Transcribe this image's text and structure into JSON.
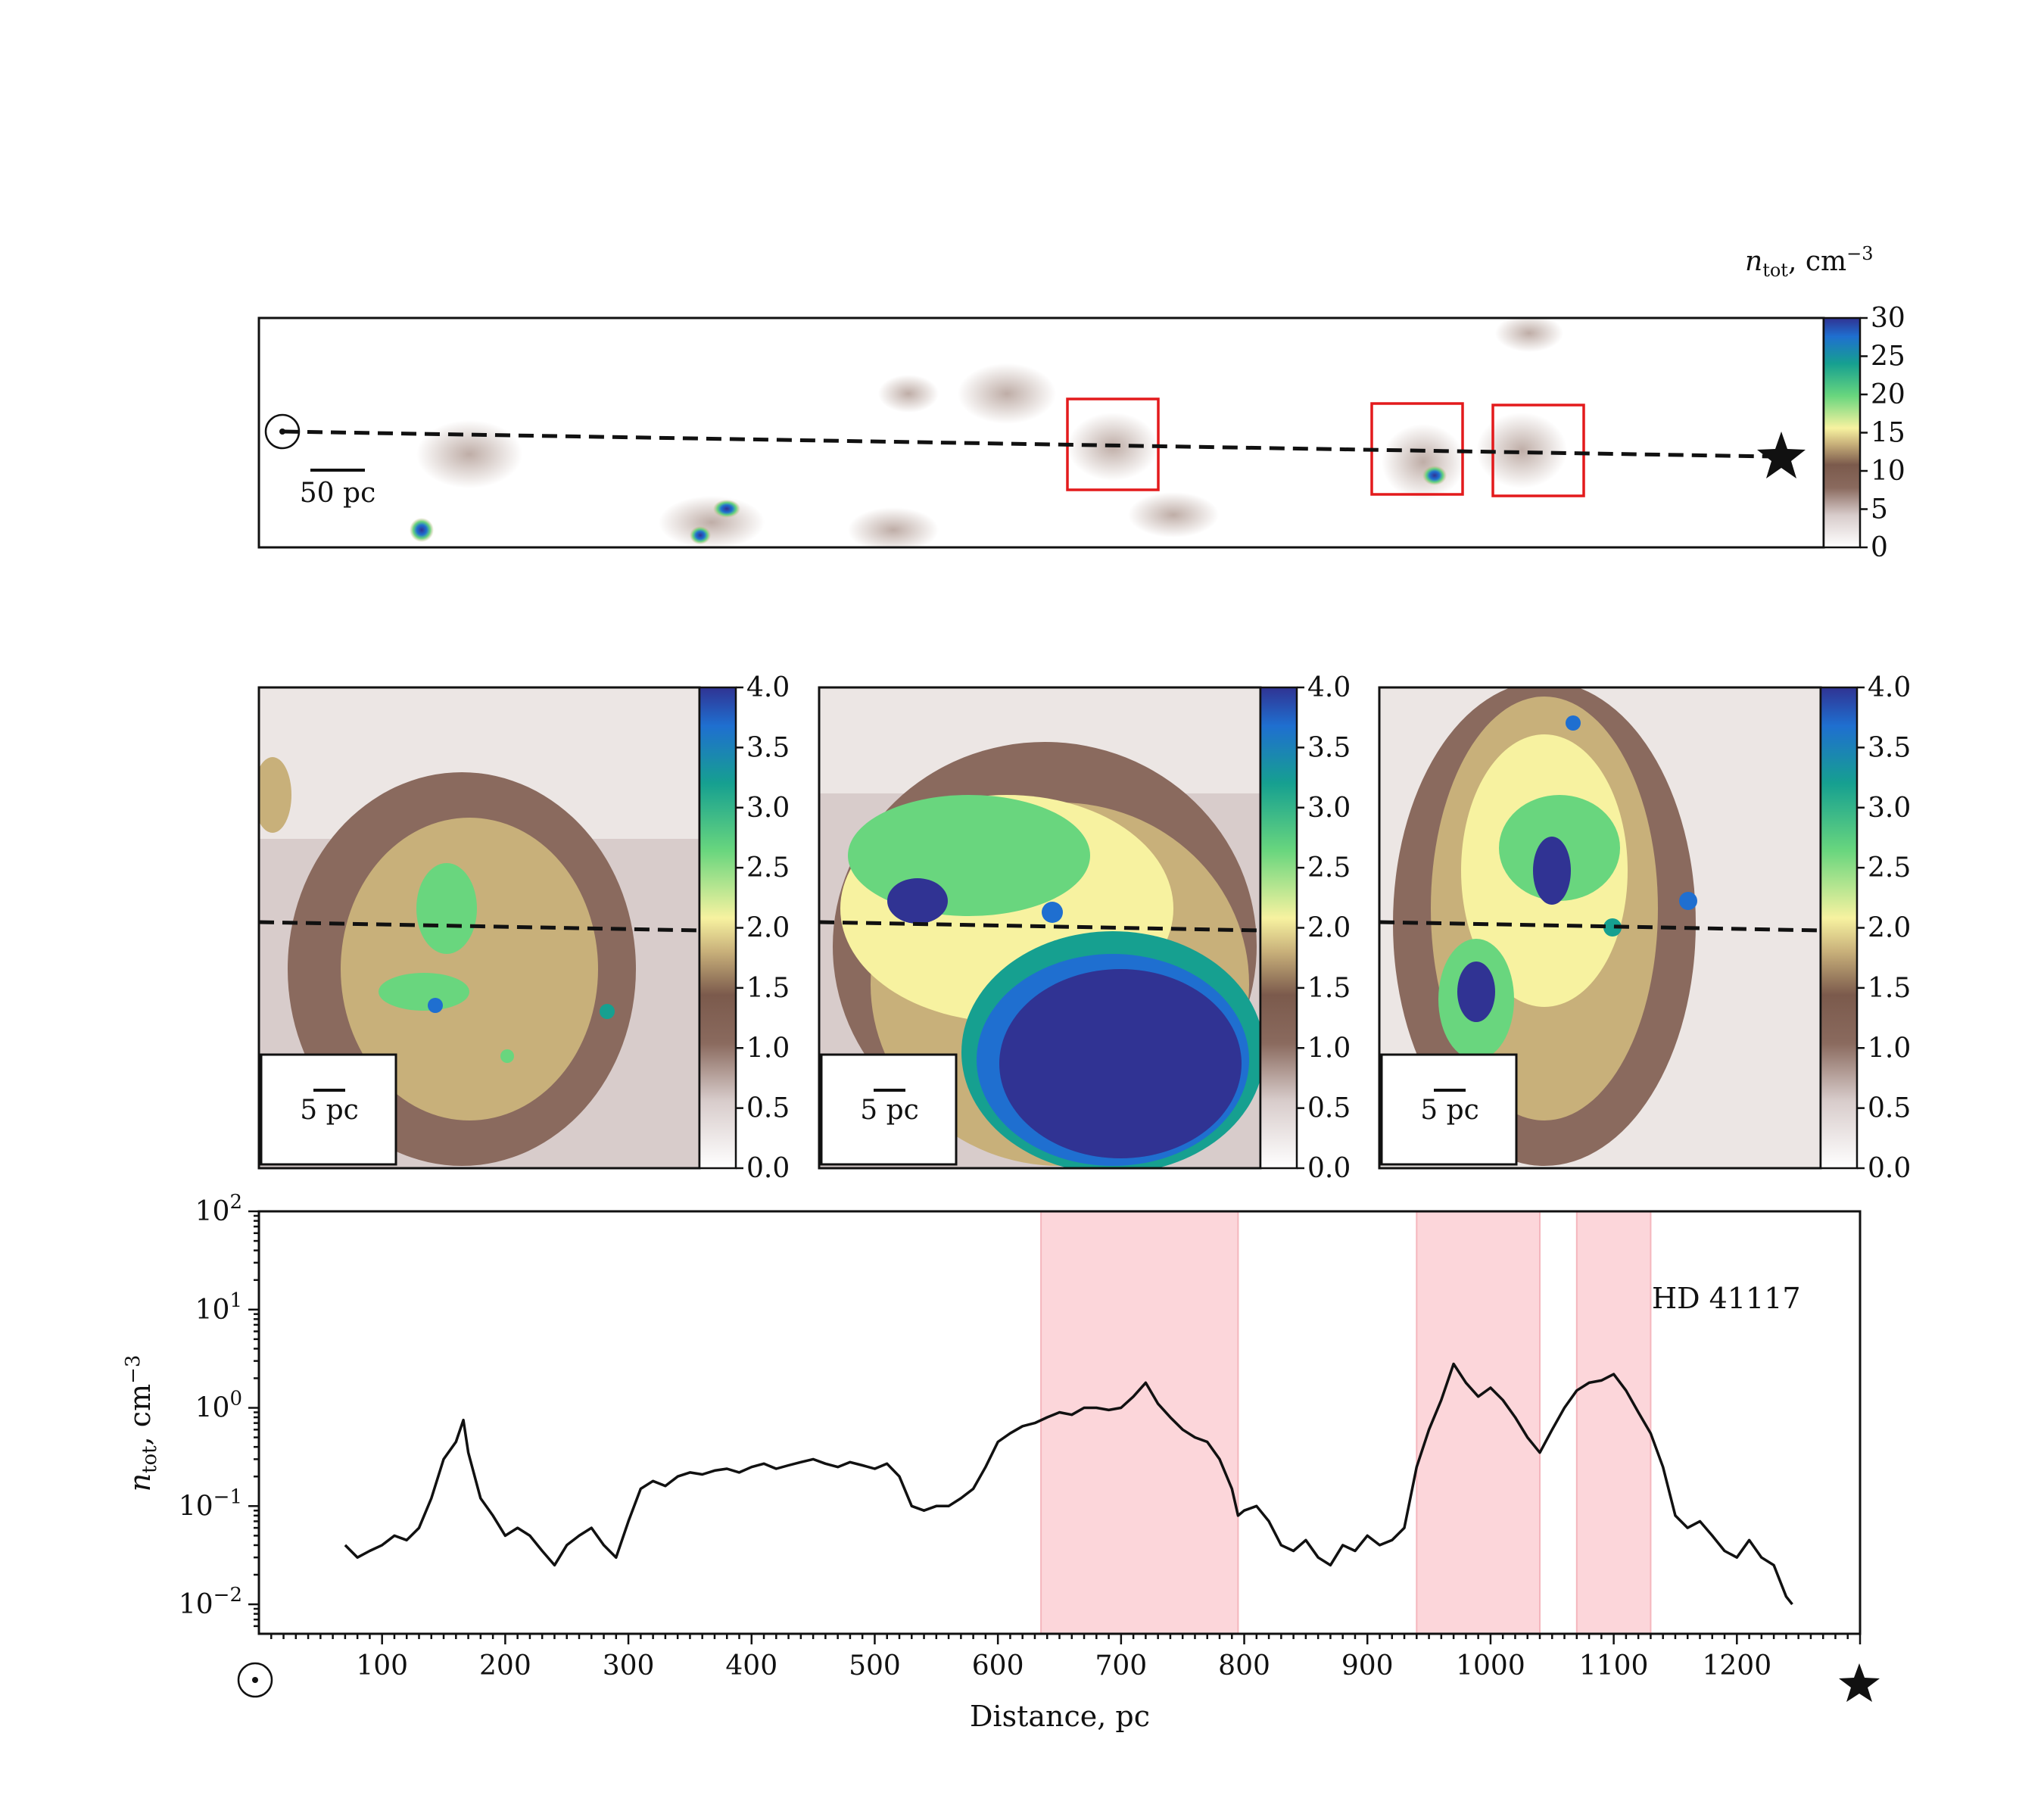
{
  "colorbar": {
    "label_n": "n",
    "label_sub": "tot",
    "label_unit": ", cm",
    "label_exp": "−3"
  },
  "overview": {
    "scalebar_label": "50 pc",
    "colorbar_ticks": [
      "0",
      "5",
      "10",
      "15",
      "20",
      "25",
      "30"
    ],
    "colorbar_range": [
      0,
      30
    ],
    "box_color": "#e31a1c"
  },
  "zoom_panels": [
    {
      "scalebar_label": "5 pc",
      "colorbar_ticks": [
        "0.0",
        "0.5",
        "1.0",
        "1.5",
        "2.0",
        "2.5",
        "3.0",
        "3.5",
        "4.0"
      ]
    },
    {
      "scalebar_label": "5 pc",
      "colorbar_ticks": [
        "0.0",
        "0.5",
        "1.0",
        "1.5",
        "2.0",
        "2.5",
        "3.0",
        "3.5",
        "4.0"
      ]
    },
    {
      "scalebar_label": "5 pc",
      "colorbar_ticks": [
        "0.0",
        "0.5",
        "1.0",
        "1.5",
        "2.0",
        "2.5",
        "3.0",
        "3.5",
        "4.0"
      ]
    }
  ],
  "colormap": [
    "#ffffff",
    "#d8cccb",
    "#8a6a5e",
    "#7b5a4c",
    "#c8b07a",
    "#f7f2a0",
    "#69d67e",
    "#16a090",
    "#1f6fd0",
    "#303393"
  ],
  "chart_data": {
    "type": "line",
    "label": "HD 41117",
    "xlabel": "Distance, pc",
    "ylabel_main": "n",
    "ylabel_sub": "tot",
    "ylabel_unit": ", cm",
    "ylabel_exp": "−3",
    "xlim": [
      0,
      1300
    ],
    "ylim_log10": [
      -2.3,
      2
    ],
    "yscale": "log",
    "x_ticks": [
      "100",
      "200",
      "300",
      "400",
      "500",
      "600",
      "700",
      "800",
      "900",
      "1000",
      "1100",
      "1200"
    ],
    "y_tick_exponents": [
      "2",
      "1",
      "0",
      "−1",
      "−2"
    ],
    "highlight_regions": [
      [
        635,
        795
      ],
      [
        940,
        1040
      ],
      [
        1070,
        1130
      ]
    ],
    "highlight_color": "#fcd6da",
    "series": [
      {
        "x": [
          70,
          80,
          90,
          100,
          110,
          120,
          130,
          140,
          150,
          160,
          166,
          170,
          180,
          190,
          200,
          210,
          220,
          230,
          240,
          250,
          260,
          270,
          280,
          290,
          300,
          310,
          320,
          330,
          340,
          350,
          360,
          370,
          380,
          390,
          400,
          410,
          420,
          430,
          440,
          450,
          460,
          470,
          480,
          490,
          500,
          510,
          520,
          530,
          540,
          550,
          560,
          570,
          580,
          590,
          600,
          610,
          620,
          630,
          640,
          650,
          660,
          670,
          680,
          690,
          700,
          710,
          720,
          730,
          740,
          750,
          760,
          770,
          780,
          790,
          795,
          800,
          810,
          820,
          830,
          840,
          850,
          860,
          870,
          880,
          890,
          900,
          910,
          920,
          930,
          940,
          950,
          960,
          970,
          980,
          990,
          1000,
          1010,
          1020,
          1030,
          1040,
          1050,
          1060,
          1070,
          1080,
          1090,
          1100,
          1110,
          1120,
          1130,
          1140,
          1150,
          1160,
          1170,
          1180,
          1190,
          1200,
          1210,
          1220,
          1230,
          1240,
          1245
        ],
        "y": [
          0.04,
          0.03,
          0.035,
          0.04,
          0.05,
          0.045,
          0.06,
          0.12,
          0.3,
          0.45,
          0.75,
          0.35,
          0.12,
          0.08,
          0.05,
          0.06,
          0.05,
          0.035,
          0.025,
          0.04,
          0.05,
          0.06,
          0.04,
          0.03,
          0.07,
          0.15,
          0.18,
          0.16,
          0.2,
          0.22,
          0.21,
          0.23,
          0.24,
          0.22,
          0.25,
          0.27,
          0.24,
          0.26,
          0.28,
          0.3,
          0.27,
          0.25,
          0.28,
          0.26,
          0.24,
          0.27,
          0.2,
          0.1,
          0.09,
          0.1,
          0.1,
          0.12,
          0.15,
          0.25,
          0.45,
          0.55,
          0.65,
          0.7,
          0.8,
          0.9,
          0.85,
          1.0,
          1.0,
          0.95,
          1.0,
          1.3,
          1.8,
          1.1,
          0.8,
          0.6,
          0.5,
          0.45,
          0.3,
          0.15,
          0.08,
          0.09,
          0.1,
          0.07,
          0.04,
          0.035,
          0.045,
          0.03,
          0.025,
          0.04,
          0.035,
          0.05,
          0.04,
          0.045,
          0.06,
          0.25,
          0.6,
          1.2,
          2.8,
          1.8,
          1.3,
          1.6,
          1.2,
          0.8,
          0.5,
          0.35,
          0.6,
          1.0,
          1.5,
          1.8,
          1.9,
          2.2,
          1.5,
          0.9,
          0.55,
          0.25,
          0.08,
          0.06,
          0.07,
          0.05,
          0.035,
          0.03,
          0.045,
          0.03,
          0.025,
          0.012,
          0.01
        ]
      }
    ]
  }
}
